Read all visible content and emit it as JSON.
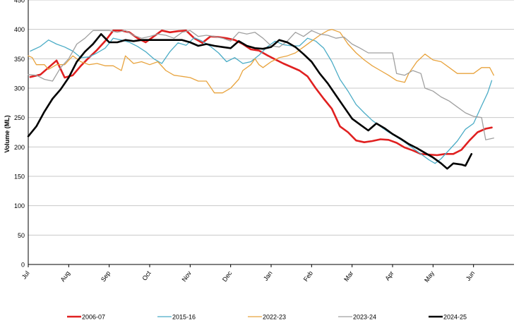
{
  "chart_data": {
    "type": "line",
    "title": "",
    "xlabel": "",
    "ylabel": "Volume (ML)",
    "ylim": [
      0,
      450
    ],
    "y_ticks": [
      0,
      50,
      100,
      150,
      200,
      250,
      300,
      350,
      400,
      450
    ],
    "x_range": [
      0,
      12
    ],
    "x_ticks": [
      {
        "x": 0,
        "label": "Jul"
      },
      {
        "x": 1,
        "label": "Aug"
      },
      {
        "x": 2,
        "label": "Sep"
      },
      {
        "x": 3,
        "label": "Oct"
      },
      {
        "x": 4,
        "label": "Nov"
      },
      {
        "x": 5,
        "label": "Dec"
      },
      {
        "x": 6,
        "label": "Jan"
      },
      {
        "x": 7,
        "label": "Feb"
      },
      {
        "x": 8,
        "label": "Mar"
      },
      {
        "x": 9,
        "label": "Apr"
      },
      {
        "x": 10,
        "label": "May"
      },
      {
        "x": 11,
        "label": "Jun"
      }
    ],
    "grid": true,
    "legend_position": "bottom",
    "series": [
      {
        "name": "2006-07",
        "color": "#e02020",
        "width": 2.6,
        "points": [
          [
            0.05,
            319
          ],
          [
            0.3,
            323
          ],
          [
            0.5,
            335
          ],
          [
            0.7,
            347
          ],
          [
            0.9,
            318
          ],
          [
            1.1,
            322
          ],
          [
            1.3,
            338
          ],
          [
            1.5,
            352
          ],
          [
            1.7,
            365
          ],
          [
            1.9,
            380
          ],
          [
            2.1,
            398
          ],
          [
            2.3,
            398
          ],
          [
            2.5,
            395
          ],
          [
            2.7,
            385
          ],
          [
            2.9,
            378
          ],
          [
            3.1,
            388
          ],
          [
            3.3,
            398
          ],
          [
            3.5,
            395
          ],
          [
            3.7,
            397
          ],
          [
            3.9,
            398
          ],
          [
            4.1,
            385
          ],
          [
            4.3,
            377
          ],
          [
            4.5,
            388
          ],
          [
            4.7,
            387
          ],
          [
            4.9,
            385
          ],
          [
            5.1,
            382
          ],
          [
            5.3,
            375
          ],
          [
            5.5,
            366
          ],
          [
            5.7,
            364
          ],
          [
            5.9,
            356
          ],
          [
            6.1,
            349
          ],
          [
            6.3,
            342
          ],
          [
            6.5,
            336
          ],
          [
            6.7,
            330
          ],
          [
            6.9,
            320
          ],
          [
            7.1,
            300
          ],
          [
            7.3,
            282
          ],
          [
            7.5,
            265
          ],
          [
            7.7,
            235
          ],
          [
            7.9,
            225
          ],
          [
            8.1,
            211
          ],
          [
            8.3,
            208
          ],
          [
            8.5,
            210
          ],
          [
            8.7,
            213
          ],
          [
            8.9,
            212
          ],
          [
            9.1,
            207
          ],
          [
            9.3,
            199
          ],
          [
            9.5,
            194
          ],
          [
            9.7,
            188
          ],
          [
            9.9,
            187
          ],
          [
            10.1,
            186
          ],
          [
            10.3,
            188
          ],
          [
            10.5,
            188
          ],
          [
            10.7,
            195
          ],
          [
            10.9,
            211
          ],
          [
            11.1,
            225
          ],
          [
            11.3,
            231
          ],
          [
            11.45,
            233
          ]
        ]
      },
      {
        "name": "2015-16",
        "color": "#4bacc6",
        "width": 1.3,
        "points": [
          [
            0.05,
            363
          ],
          [
            0.3,
            371
          ],
          [
            0.5,
            382
          ],
          [
            0.7,
            375
          ],
          [
            0.9,
            370
          ],
          [
            1.1,
            363
          ],
          [
            1.3,
            352
          ],
          [
            1.5,
            353
          ],
          [
            1.7,
            360
          ],
          [
            1.9,
            368
          ],
          [
            2.1,
            385
          ],
          [
            2.3,
            382
          ],
          [
            2.5,
            378
          ],
          [
            2.7,
            371
          ],
          [
            2.9,
            362
          ],
          [
            3.1,
            350
          ],
          [
            3.3,
            342
          ],
          [
            3.5,
            362
          ],
          [
            3.7,
            377
          ],
          [
            3.9,
            373
          ],
          [
            4.1,
            386
          ],
          [
            4.3,
            380
          ],
          [
            4.5,
            371
          ],
          [
            4.7,
            360
          ],
          [
            4.9,
            345
          ],
          [
            5.1,
            352
          ],
          [
            5.3,
            342
          ],
          [
            5.5,
            345
          ],
          [
            5.7,
            356
          ],
          [
            5.9,
            370
          ],
          [
            6.1,
            380
          ],
          [
            6.3,
            374
          ],
          [
            6.5,
            372
          ],
          [
            6.7,
            372
          ],
          [
            6.9,
            385
          ],
          [
            7.1,
            380
          ],
          [
            7.3,
            368
          ],
          [
            7.5,
            345
          ],
          [
            7.7,
            315
          ],
          [
            7.9,
            295
          ],
          [
            8.1,
            272
          ],
          [
            8.3,
            258
          ],
          [
            8.5,
            245
          ],
          [
            8.7,
            235
          ],
          [
            8.9,
            225
          ],
          [
            9.1,
            217
          ],
          [
            9.3,
            208
          ],
          [
            9.5,
            198
          ],
          [
            9.7,
            188
          ],
          [
            9.9,
            178
          ],
          [
            10.05,
            172
          ],
          [
            10.2,
            180
          ],
          [
            10.4,
            195
          ],
          [
            10.6,
            210
          ],
          [
            10.8,
            230
          ],
          [
            11.0,
            240
          ],
          [
            11.2,
            270
          ],
          [
            11.35,
            292
          ],
          [
            11.45,
            313
          ]
        ]
      },
      {
        "name": "2022-23",
        "color": "#e8a33d",
        "width": 1.3,
        "points": [
          [
            0.0,
            355
          ],
          [
            0.1,
            352
          ],
          [
            0.2,
            340
          ],
          [
            0.4,
            340
          ],
          [
            0.5,
            332
          ],
          [
            0.7,
            340
          ],
          [
            0.9,
            340
          ],
          [
            1.1,
            355
          ],
          [
            1.3,
            345
          ],
          [
            1.5,
            340
          ],
          [
            1.7,
            342
          ],
          [
            1.9,
            338
          ],
          [
            2.1,
            338
          ],
          [
            2.3,
            330
          ],
          [
            2.4,
            355
          ],
          [
            2.6,
            342
          ],
          [
            2.8,
            345
          ],
          [
            3.0,
            340
          ],
          [
            3.2,
            345
          ],
          [
            3.4,
            330
          ],
          [
            3.6,
            322
          ],
          [
            3.8,
            320
          ],
          [
            4.0,
            318
          ],
          [
            4.2,
            312
          ],
          [
            4.4,
            312
          ],
          [
            4.6,
            292
          ],
          [
            4.8,
            292
          ],
          [
            5.0,
            300
          ],
          [
            5.2,
            315
          ],
          [
            5.3,
            330
          ],
          [
            5.5,
            340
          ],
          [
            5.6,
            350
          ],
          [
            5.7,
            340
          ],
          [
            5.8,
            335
          ],
          [
            6.0,
            345
          ],
          [
            6.2,
            352
          ],
          [
            6.4,
            355
          ],
          [
            6.6,
            360
          ],
          [
            6.8,
            370
          ],
          [
            7.0,
            380
          ],
          [
            7.2,
            390
          ],
          [
            7.4,
            398
          ],
          [
            7.5,
            400
          ],
          [
            7.7,
            395
          ],
          [
            7.9,
            375
          ],
          [
            8.1,
            360
          ],
          [
            8.3,
            348
          ],
          [
            8.5,
            338
          ],
          [
            8.7,
            330
          ],
          [
            8.9,
            322
          ],
          [
            9.1,
            313
          ],
          [
            9.3,
            310
          ],
          [
            9.4,
            325
          ],
          [
            9.6,
            345
          ],
          [
            9.8,
            358
          ],
          [
            10.0,
            348
          ],
          [
            10.2,
            345
          ],
          [
            10.4,
            335
          ],
          [
            10.6,
            325
          ],
          [
            10.8,
            325
          ],
          [
            11.0,
            325
          ],
          [
            11.2,
            335
          ],
          [
            11.4,
            335
          ],
          [
            11.5,
            322
          ]
        ]
      },
      {
        "name": "2023-24",
        "color": "#a0a0a0",
        "width": 1.3,
        "points": [
          [
            0.0,
            323
          ],
          [
            0.2,
            322
          ],
          [
            0.4,
            315
          ],
          [
            0.6,
            312
          ],
          [
            0.8,
            335
          ],
          [
            1.0,
            350
          ],
          [
            1.2,
            375
          ],
          [
            1.4,
            385
          ],
          [
            1.6,
            398
          ],
          [
            1.8,
            398
          ],
          [
            2.0,
            398
          ],
          [
            2.2,
            395
          ],
          [
            2.4,
            398
          ],
          [
            2.6,
            390
          ],
          [
            2.8,
            385
          ],
          [
            3.0,
            388
          ],
          [
            3.2,
            392
          ],
          [
            3.4,
            390
          ],
          [
            3.6,
            385
          ],
          [
            3.8,
            395
          ],
          [
            4.0,
            398
          ],
          [
            4.2,
            388
          ],
          [
            4.4,
            390
          ],
          [
            4.6,
            388
          ],
          [
            4.8,
            385
          ],
          [
            5.0,
            380
          ],
          [
            5.2,
            395
          ],
          [
            5.4,
            392
          ],
          [
            5.6,
            395
          ],
          [
            5.8,
            385
          ],
          [
            6.0,
            372
          ],
          [
            6.2,
            370
          ],
          [
            6.4,
            380
          ],
          [
            6.6,
            395
          ],
          [
            6.8,
            388
          ],
          [
            7.0,
            398
          ],
          [
            7.2,
            392
          ],
          [
            7.4,
            390
          ],
          [
            7.6,
            385
          ],
          [
            7.8,
            387
          ],
          [
            8.0,
            375
          ],
          [
            8.2,
            368
          ],
          [
            8.4,
            360
          ],
          [
            8.6,
            360
          ],
          [
            8.8,
            360
          ],
          [
            9.0,
            360
          ],
          [
            9.1,
            325
          ],
          [
            9.3,
            322
          ],
          [
            9.5,
            330
          ],
          [
            9.7,
            325
          ],
          [
            9.8,
            300
          ],
          [
            10.0,
            295
          ],
          [
            10.2,
            285
          ],
          [
            10.4,
            278
          ],
          [
            10.6,
            268
          ],
          [
            10.8,
            258
          ],
          [
            11.0,
            252
          ],
          [
            11.2,
            250
          ],
          [
            11.3,
            212
          ],
          [
            11.5,
            215
          ]
        ]
      },
      {
        "name": "2024-25",
        "color": "#000000",
        "width": 2.6,
        "points": [
          [
            0.0,
            218
          ],
          [
            0.2,
            235
          ],
          [
            0.4,
            260
          ],
          [
            0.6,
            282
          ],
          [
            0.8,
            298
          ],
          [
            1.0,
            318
          ],
          [
            1.2,
            345
          ],
          [
            1.4,
            362
          ],
          [
            1.6,
            375
          ],
          [
            1.8,
            392
          ],
          [
            2.0,
            378
          ],
          [
            2.2,
            378
          ],
          [
            2.4,
            382
          ],
          [
            2.6,
            380
          ],
          [
            2.8,
            382
          ],
          [
            3.0,
            382
          ],
          [
            3.2,
            382
          ],
          [
            3.4,
            382
          ],
          [
            3.6,
            382
          ],
          [
            3.8,
            382
          ],
          [
            4.0,
            378
          ],
          [
            4.2,
            372
          ],
          [
            4.4,
            375
          ],
          [
            4.6,
            372
          ],
          [
            4.8,
            370
          ],
          [
            5.0,
            368
          ],
          [
            5.2,
            380
          ],
          [
            5.4,
            372
          ],
          [
            5.6,
            368
          ],
          [
            5.8,
            367
          ],
          [
            6.0,
            370
          ],
          [
            6.2,
            382
          ],
          [
            6.4,
            378
          ],
          [
            6.6,
            370
          ],
          [
            6.8,
            358
          ],
          [
            7.0,
            345
          ],
          [
            7.2,
            325
          ],
          [
            7.4,
            308
          ],
          [
            7.6,
            288
          ],
          [
            7.8,
            268
          ],
          [
            8.0,
            248
          ],
          [
            8.2,
            238
          ],
          [
            8.4,
            228
          ],
          [
            8.6,
            240
          ],
          [
            8.8,
            232
          ],
          [
            9.0,
            222
          ],
          [
            9.2,
            214
          ],
          [
            9.4,
            205
          ],
          [
            9.6,
            198
          ],
          [
            9.8,
            190
          ],
          [
            10.0,
            182
          ],
          [
            10.2,
            172
          ],
          [
            10.35,
            163
          ],
          [
            10.5,
            172
          ],
          [
            10.7,
            170
          ],
          [
            10.8,
            168
          ],
          [
            10.95,
            188
          ]
        ]
      }
    ]
  }
}
